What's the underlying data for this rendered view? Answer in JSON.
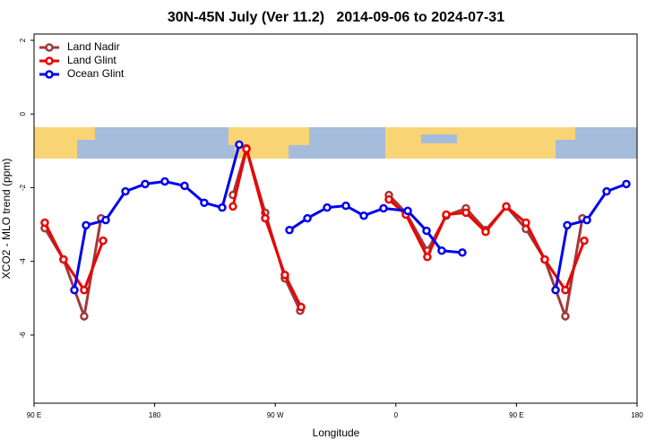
{
  "chart_data": {
    "type": "line",
    "title": "30N-45N July (Ver 11.2)   2014-09-06 to 2024-07-31",
    "x_label": "Longitude",
    "y_label": "XCO2 - MLO trend (ppm)",
    "xlim": [
      90,
      540
    ],
    "xticks": [
      {
        "value": 90,
        "label": "90 E"
      },
      180,
      {
        "value": 270,
        "label": "90 W"
      },
      {
        "value": 360,
        "label": "0"
      },
      {
        "value": 450,
        "label": "90 E"
      },
      {
        "value": 540,
        "label": "180"
      }
    ],
    "ylim": [
      -7.85,
      2.17
    ],
    "yticks": [
      2,
      0,
      -2,
      -4,
      -6
    ],
    "legend": "top-left",
    "series": [
      {
        "name": "Land Nadir",
        "color": "#a03a3a",
        "x": [
          98,
          112,
          127.4,
          140,
          190,
          238.4,
          248.5,
          262.5,
          277.2,
          288.6,
          320,
          354.8,
          367.5,
          383.5,
          397.6,
          412.3,
          427,
          442.4,
          457.1,
          471.1,
          486.5,
          499.2
        ],
        "values": [
          -3.1,
          -3.95,
          -5.49,
          -2.83,
          null,
          -2.2,
          -0.93,
          -2.68,
          -4.46,
          -5.34,
          null,
          -2.2,
          -2.68,
          -3.71,
          -2.76,
          -2.56,
          -3.15,
          -2.51,
          -3.12,
          -3.95,
          -5.49,
          -2.83
        ]
      },
      {
        "name": "Land Glint",
        "color": "#ee0000",
        "x": [
          98,
          112,
          127.4,
          141.5,
          190,
          238.4,
          248.5,
          262.5,
          277.2,
          289.3,
          320,
          354.8,
          367.5,
          383.5,
          397.6,
          412.3,
          427,
          442.4,
          457.1,
          471.1,
          486.5,
          500.6
        ],
        "values": [
          -2.95,
          -3.95,
          -4.78,
          -3.44,
          null,
          -2.51,
          -0.95,
          -2.83,
          -4.37,
          -5.24,
          null,
          -2.32,
          -2.73,
          -3.88,
          -2.73,
          -2.68,
          -3.2,
          -2.51,
          -2.95,
          -3.95,
          -4.78,
          -3.44
        ]
      },
      {
        "name": "Ocean Glint",
        "color": "#0000ee",
        "x": [
          120.1,
          128.8,
          143.5,
          158.2,
          172.9,
          187.6,
          202.3,
          217,
          230.4,
          243.1,
          260,
          280.6,
          294,
          308.7,
          322.7,
          336.1,
          350.8,
          368.9,
          382.9,
          394.2,
          409.6,
          440,
          479.2,
          487.9,
          502.6,
          517.3,
          532
        ],
        "values": [
          -4.78,
          -3.02,
          -2.88,
          -2.1,
          -1.9,
          -1.83,
          -1.95,
          -2.41,
          -2.54,
          -0.83,
          null,
          -3.15,
          -2.83,
          -2.54,
          -2.49,
          -2.76,
          -2.56,
          -2.63,
          -3.17,
          -3.71,
          -3.76,
          null,
          -4.78,
          -3.02,
          -2.88,
          -2.1,
          -1.9
        ]
      }
    ]
  }
}
